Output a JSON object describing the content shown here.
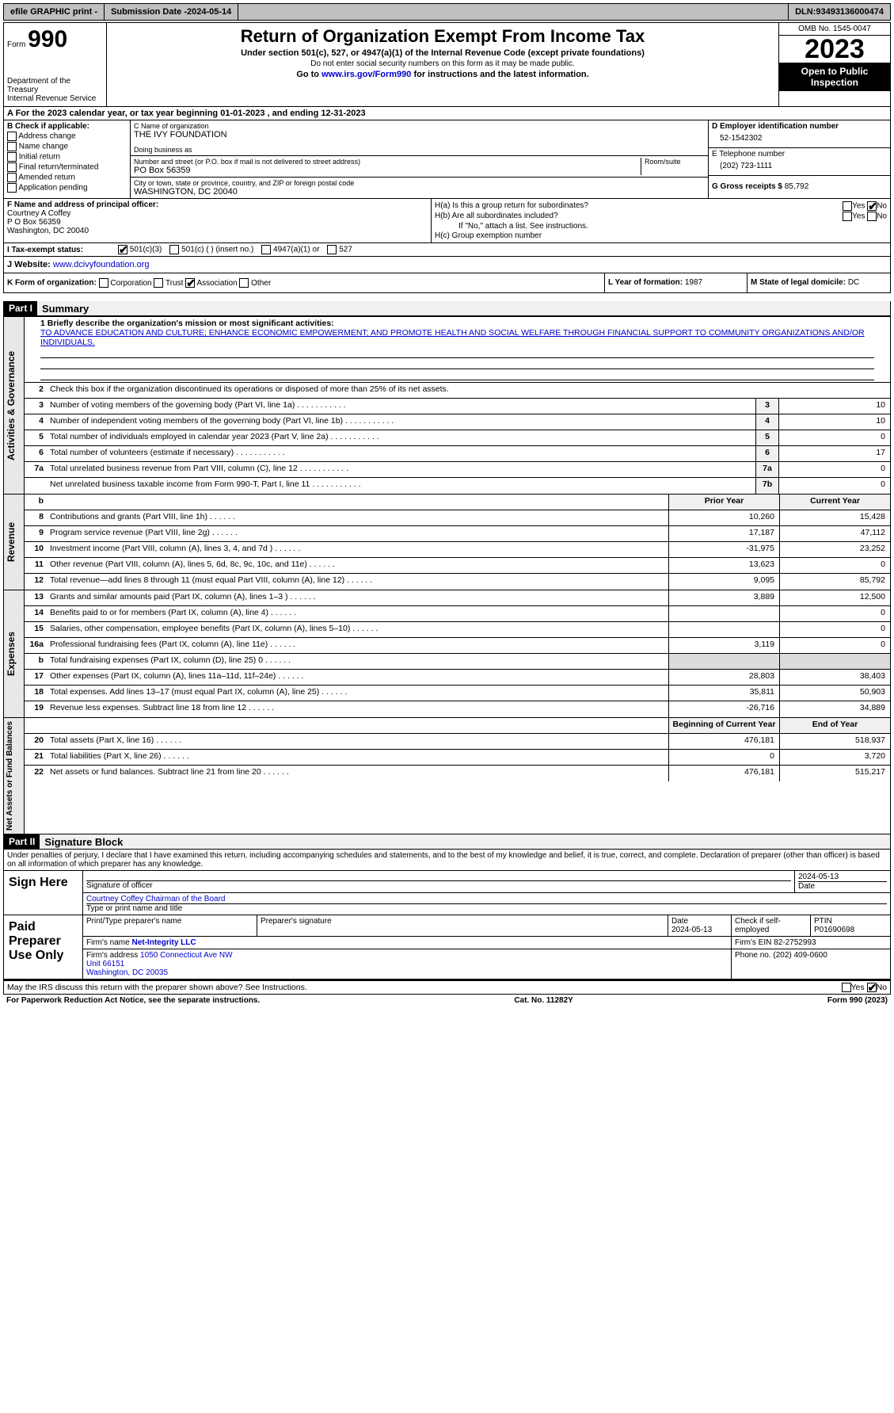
{
  "topbar": {
    "efile": "efile GRAPHIC print -",
    "submission_label": "Submission Date - ",
    "submission_date": "2024-05-14",
    "dln_label": "DLN: ",
    "dln": "93493136000474"
  },
  "header": {
    "form_small": "Form",
    "form_number": "990",
    "title": "Return of Organization Exempt From Income Tax",
    "subtitle1": "Under section 501(c), 527, or 4947(a)(1) of the Internal Revenue Code (except private foundations)",
    "subtitle2": "Do not enter social security numbers on this form as it may be made public.",
    "subtitle3_pre": "Go to ",
    "subtitle3_link": "www.irs.gov/Form990",
    "subtitle3_post": " for instructions and the latest information.",
    "dept": "Department of the Treasury\nInternal Revenue Service",
    "omb": "OMB No. 1545-0047",
    "year": "2023",
    "open_public": "Open to Public Inspection"
  },
  "lineA": {
    "text_pre": "A For the 2023 calendar year, or tax year beginning ",
    "begin": "01-01-2023",
    "text_mid": " , and ending ",
    "end": "12-31-2023"
  },
  "colB": {
    "label": "B Check if applicable:",
    "opts": [
      "Address change",
      "Name change",
      "Initial return",
      "Final return/terminated",
      "Amended return",
      "Application pending"
    ]
  },
  "colC": {
    "name_lbl": "C Name of organization",
    "name": "THE IVY FOUNDATION",
    "dba_lbl": "Doing business as",
    "dba": "",
    "street_lbl": "Number and street (or P.O. box if mail is not delivered to street address)",
    "street": "PO Box 56359",
    "room_lbl": "Room/suite",
    "room": "",
    "city_lbl": "City or town, state or province, country, and ZIP or foreign postal code",
    "city": "WASHINGTON, DC  20040"
  },
  "colD": {
    "ein_lbl": "D Employer identification number",
    "ein": "52-1542302",
    "tel_lbl": "E Telephone number",
    "tel": "(202) 723-1111",
    "gross_lbl": "G Gross receipts $ ",
    "gross": "85,792"
  },
  "rowF": {
    "lbl": "F  Name and address of principal officer:",
    "name": "Courtney A Coffey",
    "addr1": "P O Box 56359",
    "addr2": "Washington, DC  20040"
  },
  "rowH": {
    "ha_lbl": "H(a)  Is this a group return for subordinates?",
    "hb_lbl": "H(b)  Are all subordinates included?",
    "hb_note": "If \"No,\" attach a list. See instructions.",
    "hc_lbl": "H(c)  Group exemption number ",
    "yes": "Yes",
    "no": "No"
  },
  "rowI": {
    "lbl": "I    Tax-exempt status:",
    "o1": "501(c)(3)",
    "o2": "501(c) (  ) (insert no.)",
    "o3": "4947(a)(1) or",
    "o4": "527"
  },
  "rowJ": {
    "lbl": "J    Website: ",
    "url": "www.dcivyfoundation.org"
  },
  "rowK": {
    "lbl": "K Form of organization:",
    "opts": [
      "Corporation",
      "Trust",
      "Association",
      "Other"
    ]
  },
  "rowL": {
    "lbl": "L Year of formation: ",
    "val": "1987"
  },
  "rowM": {
    "lbl": "M State of legal domicile: ",
    "val": "DC"
  },
  "partI": {
    "hdr": "Part I",
    "title": "Summary"
  },
  "summary": {
    "mission_lbl": "1   Briefly describe the organization's mission or most significant activities:",
    "mission": "TO ADVANCE EDUCATION AND CULTURE; ENHANCE ECONOMIC EMPOWERMENT; AND PROMOTE HEALTH AND SOCIAL WELFARE THROUGH FINANCIAL SUPPORT TO COMMUNITY ORGANIZATIONS AND/OR INDIVIDUALS.",
    "line2": "Check this box       if the organization discontinued its operations or disposed of more than 25% of its net assets."
  },
  "governance_rows": [
    {
      "n": "3",
      "d": "Number of voting members of the governing body (Part VI, line 1a)",
      "box": "3",
      "v": "10"
    },
    {
      "n": "4",
      "d": "Number of independent voting members of the governing body (Part VI, line 1b)",
      "box": "4",
      "v": "10"
    },
    {
      "n": "5",
      "d": "Total number of individuals employed in calendar year 2023 (Part V, line 2a)",
      "box": "5",
      "v": "0"
    },
    {
      "n": "6",
      "d": "Total number of volunteers (estimate if necessary)",
      "box": "6",
      "v": "17"
    },
    {
      "n": "7a",
      "d": "Total unrelated business revenue from Part VIII, column (C), line 12",
      "box": "7a",
      "v": "0"
    },
    {
      "n": "",
      "d": "Net unrelated business taxable income from Form 990-T, Part I, line 11",
      "box": "7b",
      "v": "0"
    }
  ],
  "rev_hdr": {
    "b": "b",
    "py": "Prior Year",
    "cy": "Current Year"
  },
  "revenue_rows": [
    {
      "n": "8",
      "d": "Contributions and grants (Part VIII, line 1h)",
      "py": "10,260",
      "cy": "15,428"
    },
    {
      "n": "9",
      "d": "Program service revenue (Part VIII, line 2g)",
      "py": "17,187",
      "cy": "47,112"
    },
    {
      "n": "10",
      "d": "Investment income (Part VIII, column (A), lines 3, 4, and 7d )",
      "py": "-31,975",
      "cy": "23,252"
    },
    {
      "n": "11",
      "d": "Other revenue (Part VIII, column (A), lines 5, 6d, 8c, 9c, 10c, and 11e)",
      "py": "13,623",
      "cy": "0"
    },
    {
      "n": "12",
      "d": "Total revenue—add lines 8 through 11 (must equal Part VIII, column (A), line 12)",
      "py": "9,095",
      "cy": "85,792"
    }
  ],
  "expense_rows": [
    {
      "n": "13",
      "d": "Grants and similar amounts paid (Part IX, column (A), lines 1–3 )",
      "py": "3,889",
      "cy": "12,500"
    },
    {
      "n": "14",
      "d": "Benefits paid to or for members (Part IX, column (A), line 4)",
      "py": "",
      "cy": "0"
    },
    {
      "n": "15",
      "d": "Salaries, other compensation, employee benefits (Part IX, column (A), lines 5–10)",
      "py": "",
      "cy": "0"
    },
    {
      "n": "16a",
      "d": "Professional fundraising fees (Part IX, column (A), line 11e)",
      "py": "3,119",
      "cy": "0"
    },
    {
      "n": "b",
      "d": "Total fundraising expenses (Part IX, column (D), line 25) 0",
      "py": "",
      "cy": "",
      "shade": true
    },
    {
      "n": "17",
      "d": "Other expenses (Part IX, column (A), lines 11a–11d, 11f–24e)",
      "py": "28,803",
      "cy": "38,403"
    },
    {
      "n": "18",
      "d": "Total expenses. Add lines 13–17 (must equal Part IX, column (A), line 25)",
      "py": "35,811",
      "cy": "50,903"
    },
    {
      "n": "19",
      "d": "Revenue less expenses. Subtract line 18 from line 12",
      "py": "-26,716",
      "cy": "34,889"
    }
  ],
  "na_hdr": {
    "py": "Beginning of Current Year",
    "cy": "End of Year"
  },
  "netassets_rows": [
    {
      "n": "20",
      "d": "Total assets (Part X, line 16)",
      "py": "476,181",
      "cy": "518,937"
    },
    {
      "n": "21",
      "d": "Total liabilities (Part X, line 26)",
      "py": "0",
      "cy": "3,720"
    },
    {
      "n": "22",
      "d": "Net assets or fund balances. Subtract line 21 from line 20",
      "py": "476,181",
      "cy": "515,217"
    }
  ],
  "vtabs": {
    "gov": "Activities & Governance",
    "rev": "Revenue",
    "exp": "Expenses",
    "na": "Net Assets or Fund Balances"
  },
  "partII": {
    "hdr": "Part II",
    "title": "Signature Block"
  },
  "sig_decl": "Under penalties of perjury, I declare that I have examined this return, including accompanying schedules and statements, and to the best of my knowledge and belief, it is true, correct, and complete. Declaration of preparer (other than officer) is based on all information of which preparer has any knowledge.",
  "sign_here": {
    "lbl": "Sign Here",
    "sig_lbl": "Signature of officer",
    "date_lbl": "Date",
    "date": "2024-05-13",
    "name": "Courtney Coffey  Chairman of the Board",
    "name_lbl": "Type or print name and title"
  },
  "paid": {
    "lbl": "Paid Preparer Use Only",
    "prep_name_lbl": "Print/Type preparer's name",
    "prep_name": "",
    "prep_sig_lbl": "Preparer's signature",
    "date_lbl": "Date",
    "date": "2024-05-13",
    "check_lbl": "Check        if self-employed",
    "ptin_lbl": "PTIN",
    "ptin": "P01690698",
    "firm_name_lbl": "Firm's name     ",
    "firm_name": "Net-Integrity LLC",
    "firm_ein_lbl": "Firm's EIN  ",
    "firm_ein": "82-2752993",
    "firm_addr_lbl": "Firm's address ",
    "firm_addr": "1050 Connecticut Ave NW\nUnit 66151\nWashington, DC  20035",
    "phone_lbl": "Phone no. ",
    "phone": "(202) 409-0600"
  },
  "footer": {
    "discuss": "May the IRS discuss this return with the preparer shown above? See Instructions.",
    "yes": "Yes",
    "no": "No",
    "paperwork": "For Paperwork Reduction Act Notice, see the separate instructions.",
    "cat": "Cat. No. 11282Y",
    "form": "Form 990 (2023)"
  }
}
